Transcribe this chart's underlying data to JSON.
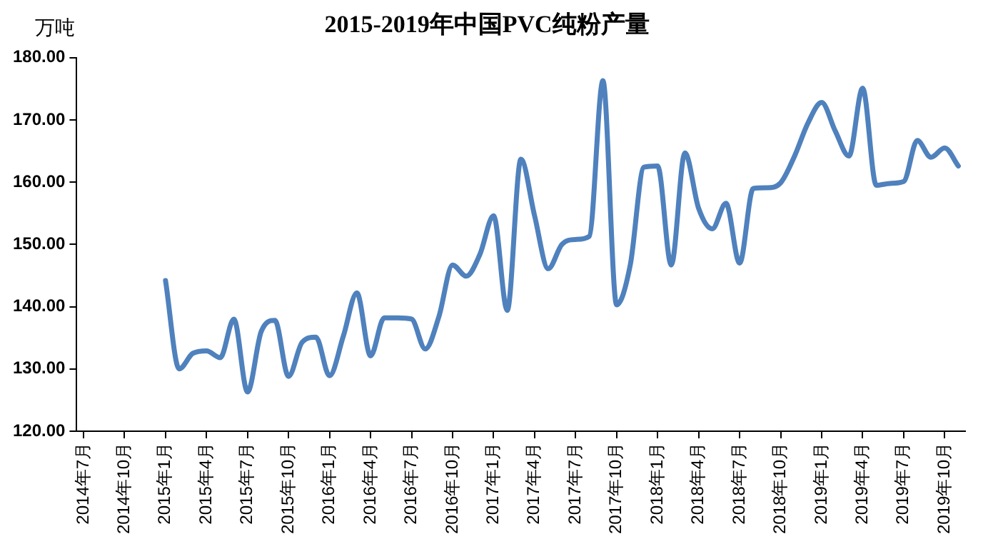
{
  "chart_data": {
    "type": "line",
    "title": "2015-2019年中国PVC纯粉产量",
    "ylabel": "万吨",
    "categories": [
      "2014年7月",
      null,
      null,
      "2014年10月",
      null,
      null,
      "2015年1月",
      null,
      null,
      "2015年4月",
      null,
      null,
      "2015年7月",
      null,
      null,
      "2015年10月",
      null,
      null,
      "2016年1月",
      null,
      null,
      "2016年4月",
      null,
      null,
      "2016年7月",
      null,
      null,
      "2016年10月",
      null,
      null,
      "2017年1月",
      null,
      null,
      "2017年4月",
      null,
      null,
      "2017年7月",
      null,
      null,
      "2017年10月",
      null,
      null,
      "2018年1月",
      null,
      null,
      "2018年4月",
      null,
      null,
      "2018年7月",
      null,
      null,
      "2018年10月",
      null,
      null,
      "2019年1月",
      null,
      null,
      "2019年4月",
      null,
      null,
      "2019年7月",
      null,
      null,
      "2019年10月",
      null
    ],
    "series": [
      {
        "color": "#4f81bd",
        "values": [
          null,
          null,
          null,
          null,
          null,
          null,
          144.2,
          130.0,
          132.5,
          132.9,
          131.8,
          138.0,
          126.3,
          136.0,
          137.8,
          128.8,
          134.3,
          135.1,
          128.9,
          135.2,
          142.2,
          132.1,
          138.2,
          138.2,
          138.0,
          133.2,
          138.4,
          146.7,
          144.9,
          148.4,
          154.6,
          139.4,
          163.7,
          154.6,
          146.1,
          150.0,
          150.8,
          151.3,
          176.3,
          140.3,
          146.7,
          162.4,
          162.6,
          146.7,
          164.7,
          155.8,
          152.5,
          156.6,
          147.0,
          159.0,
          159.1,
          159.9,
          164.1,
          169.5,
          172.8,
          168.2,
          164.2,
          175.1,
          159.5,
          159.8,
          160.1,
          166.7,
          164.0,
          165.5,
          162.6
        ]
      }
    ],
    "ylim": [
      120,
      180
    ],
    "yticks": [
      {
        "value": 120,
        "label": "120.00"
      },
      {
        "value": 130,
        "label": "130.00"
      },
      {
        "value": 140,
        "label": "140.00"
      },
      {
        "value": 150,
        "label": "150.00"
      },
      {
        "value": 160,
        "label": "160.00"
      },
      {
        "value": 170,
        "label": "170.00"
      },
      {
        "value": 180,
        "label": "180.00"
      }
    ],
    "marker": "none",
    "line_style": "solid"
  }
}
